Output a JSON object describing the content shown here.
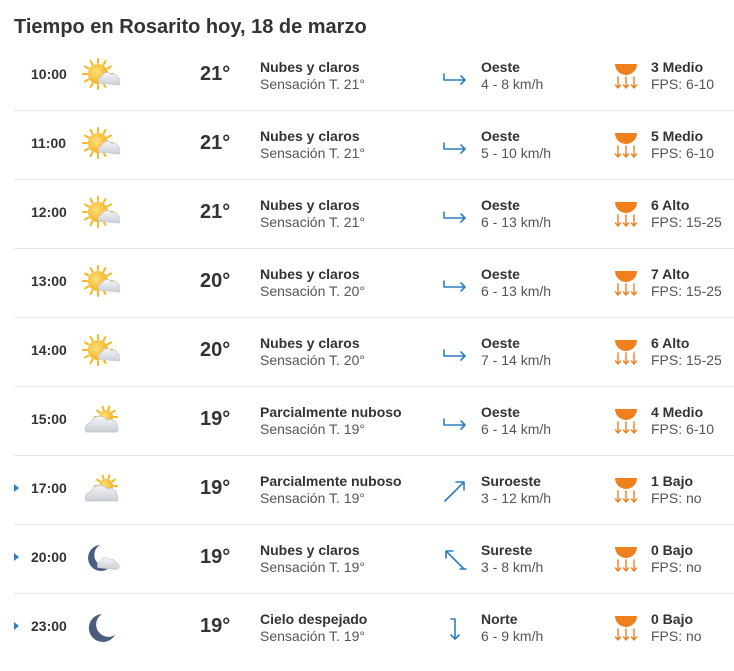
{
  "title": "Tiempo en Rosarito hoy, 18 de marzo",
  "colors": {
    "accent": "#2d7fbf",
    "sun": "#f5b81f",
    "uv": "#f07f1e",
    "moon": "#4a5d80"
  },
  "rows": [
    {
      "time": "10:00",
      "icon": "sun-cloud-icon",
      "temp": "21°",
      "condition": "Nubes y claros",
      "feels": "Sensación T. 21°",
      "wind_icon": "arrow-east-icon",
      "wind_dir": "Oeste",
      "wind_speed": "4 - 8 km/h",
      "uv": "3 Medio",
      "fps": "FPS: 6-10",
      "expandable": false
    },
    {
      "time": "11:00",
      "icon": "sun-cloud-icon",
      "temp": "21°",
      "condition": "Nubes y claros",
      "feels": "Sensación T. 21°",
      "wind_icon": "arrow-east-icon",
      "wind_dir": "Oeste",
      "wind_speed": "5 - 10 km/h",
      "uv": "5 Medio",
      "fps": "FPS: 6-10",
      "expandable": false
    },
    {
      "time": "12:00",
      "icon": "sun-cloud-icon",
      "temp": "21°",
      "condition": "Nubes y claros",
      "feels": "Sensación T. 21°",
      "wind_icon": "arrow-east-icon",
      "wind_dir": "Oeste",
      "wind_speed": "6 - 13 km/h",
      "uv": "6 Alto",
      "fps": "FPS: 15-25",
      "expandable": false
    },
    {
      "time": "13:00",
      "icon": "sun-cloud-icon",
      "temp": "20°",
      "condition": "Nubes y claros",
      "feels": "Sensación T. 20°",
      "wind_icon": "arrow-east-icon",
      "wind_dir": "Oeste",
      "wind_speed": "6 - 13 km/h",
      "uv": "7 Alto",
      "fps": "FPS: 15-25",
      "expandable": false
    },
    {
      "time": "14:00",
      "icon": "sun-cloud-icon",
      "temp": "20°",
      "condition": "Nubes y claros",
      "feels": "Sensación T. 20°",
      "wind_icon": "arrow-east-icon",
      "wind_dir": "Oeste",
      "wind_speed": "7 - 14 km/h",
      "uv": "6 Alto",
      "fps": "FPS: 15-25",
      "expandable": false
    },
    {
      "time": "15:00",
      "icon": "cloud-sun-icon",
      "temp": "19°",
      "condition": "Parcialmente nuboso",
      "feels": "Sensación T. 19°",
      "wind_icon": "arrow-east-icon",
      "wind_dir": "Oeste",
      "wind_speed": "6 - 14 km/h",
      "uv": "4 Medio",
      "fps": "FPS: 6-10",
      "expandable": false
    },
    {
      "time": "17:00",
      "icon": "cloud-sun-icon",
      "temp": "19°",
      "condition": "Parcialmente nuboso",
      "feels": "Sensación T. 19°",
      "wind_icon": "arrow-northeast-icon",
      "wind_dir": "Suroeste",
      "wind_speed": "3 - 12 km/h",
      "uv": "1 Bajo",
      "fps": "FPS: no",
      "expandable": true
    },
    {
      "time": "20:00",
      "icon": "moon-cloud-icon",
      "temp": "19°",
      "condition": "Nubes y claros",
      "feels": "Sensación T. 19°",
      "wind_icon": "arrow-northwest-icon",
      "wind_dir": "Sureste",
      "wind_speed": "3 - 8 km/h",
      "uv": "0 Bajo",
      "fps": "FPS: no",
      "expandable": true
    },
    {
      "time": "23:00",
      "icon": "moon-icon",
      "temp": "19°",
      "condition": "Cielo despejado",
      "feels": "Sensación T. 19°",
      "wind_icon": "arrow-south-icon",
      "wind_dir": "Norte",
      "wind_speed": "6 - 9 km/h",
      "uv": "0 Bajo",
      "fps": "FPS: no",
      "expandable": true
    }
  ]
}
